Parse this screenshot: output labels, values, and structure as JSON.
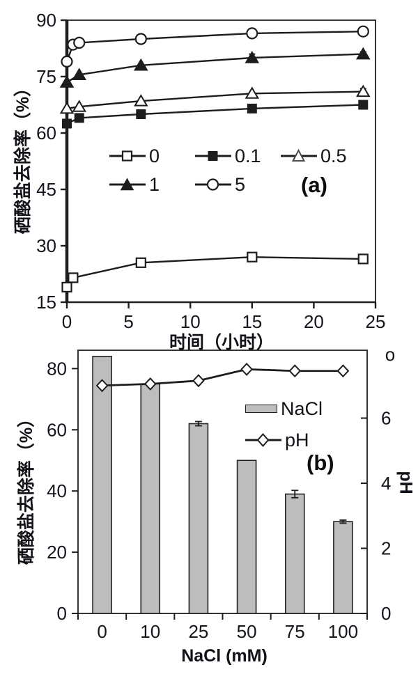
{
  "figure": {
    "background": "#ffffff",
    "line_color": "#1d1d1d",
    "panel_labels": [
      "(a)",
      "(b)"
    ]
  },
  "chart_data": [
    {
      "type": "line",
      "panel_label": "(a)",
      "xlabel": "时间（小时）",
      "ylabel": "硒酸盐去除率（%）",
      "xlim": [
        0,
        25
      ],
      "ylim": [
        15,
        90
      ],
      "xticks": [
        0,
        5,
        10,
        15,
        20,
        25
      ],
      "yticks": [
        15,
        30,
        45,
        60,
        75,
        90
      ],
      "grid": false,
      "legend_position": "inside-center",
      "series": [
        {
          "name": "0",
          "marker": "square-open",
          "x": [
            0,
            0.5,
            6,
            15,
            24
          ],
          "y": [
            19,
            21.5,
            25.5,
            27,
            26.5
          ],
          "yerr": [
            0,
            0,
            1,
            0.7,
            0.7
          ]
        },
        {
          "name": "0.1",
          "marker": "square-filled",
          "x": [
            0,
            1,
            6,
            15,
            24
          ],
          "y": [
            62.5,
            64,
            65,
            66.5,
            67.5
          ],
          "yerr": [
            0,
            0,
            0,
            0,
            1
          ]
        },
        {
          "name": "0.5",
          "marker": "triangle-open",
          "x": [
            0,
            1,
            6,
            15,
            24
          ],
          "y": [
            66.5,
            67,
            68.5,
            70.5,
            71
          ],
          "yerr": [
            0,
            0,
            0,
            0,
            0.8
          ]
        },
        {
          "name": "1",
          "marker": "triangle-filled",
          "x": [
            0,
            1,
            6,
            15,
            24
          ],
          "y": [
            73.5,
            75.5,
            78,
            80,
            81
          ],
          "yerr": [
            0,
            0,
            0,
            1,
            0.6
          ]
        },
        {
          "name": "5",
          "marker": "circle-open",
          "x": [
            0,
            0.5,
            1,
            6,
            15,
            24
          ],
          "y": [
            79,
            83.5,
            84,
            85,
            86.5,
            87
          ],
          "yerr": [
            0,
            0,
            0,
            0,
            0.7,
            0
          ]
        }
      ]
    },
    {
      "type": "bar+line",
      "panel_label": "(b)",
      "xlabel": "NaCl (mM)",
      "ylabel_left": "硒酸盐去除率（%）",
      "ylabel_right": "pH",
      "categories": [
        "0",
        "10",
        "25",
        "50",
        "75",
        "100"
      ],
      "bars": {
        "name": "NaCl",
        "values": [
          84,
          75,
          62,
          50,
          39,
          30
        ],
        "yerr": [
          0,
          0.4,
          0.7,
          0,
          1.2,
          0.5
        ],
        "fill": "#bdbdbd"
      },
      "line": {
        "name": "pH",
        "marker": "diamond-open",
        "values": [
          7.0,
          7.05,
          7.15,
          7.5,
          7.45,
          7.45
        ]
      },
      "ylim_left": [
        0,
        86
      ],
      "yticks_left": [
        0,
        20,
        40,
        60,
        80
      ],
      "ylim_right": [
        0,
        8
      ],
      "yticks_right": [
        0,
        2,
        4,
        6
      ],
      "right_axis_top_symbol": "o",
      "grid": false,
      "legend_position": "inside-right"
    }
  ]
}
